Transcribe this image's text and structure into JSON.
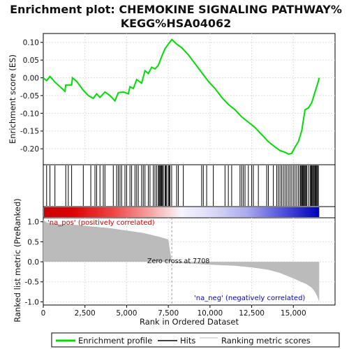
{
  "chart_data": {
    "type": "line",
    "title_line1": "Enrichment plot: CHEMOKINE SIGNALING PATHWAY%",
    "title_line2": "KEGG%HSA04062",
    "x_axis": {
      "label": "Rank in Ordered Dataset",
      "range": [
        0,
        17500
      ],
      "ticks": [
        0,
        2500,
        5000,
        7500,
        10000,
        12500,
        15000
      ],
      "tick_labels": [
        "0",
        "2,500",
        "5,000",
        "7,500",
        "10,000",
        "12,500",
        "15,000"
      ]
    },
    "es_panel": {
      "ylabel": "Enrichment score (ES)",
      "ylim": [
        -0.245,
        0.125
      ],
      "yticks": [
        0.1,
        0.05,
        0.0,
        -0.05,
        -0.1,
        -0.15,
        -0.2
      ],
      "ytick_labels": [
        "0.10",
        "0.05",
        "0.00",
        "-0.05",
        "-0.10",
        "-0.15",
        "-0.20"
      ],
      "grid": true,
      "series_name": "Enrichment profile",
      "color": "#00dd00",
      "points": [
        [
          0,
          0.0
        ],
        [
          200,
          -0.008
        ],
        [
          400,
          0.004
        ],
        [
          700,
          -0.012
        ],
        [
          1000,
          -0.025
        ],
        [
          1300,
          -0.038
        ],
        [
          1350,
          -0.02
        ],
        [
          1700,
          -0.02
        ],
        [
          1750,
          0.0
        ],
        [
          2000,
          -0.01
        ],
        [
          2400,
          -0.035
        ],
        [
          2700,
          -0.05
        ],
        [
          3000,
          -0.058
        ],
        [
          3200,
          -0.045
        ],
        [
          3400,
          -0.055
        ],
        [
          3700,
          -0.04
        ],
        [
          4000,
          -0.05
        ],
        [
          4300,
          -0.065
        ],
        [
          4500,
          -0.042
        ],
        [
          4800,
          -0.04
        ],
        [
          5100,
          -0.045
        ],
        [
          5200,
          -0.025
        ],
        [
          5400,
          -0.03
        ],
        [
          5600,
          -0.005
        ],
        [
          5900,
          -0.015
        ],
        [
          6100,
          0.02
        ],
        [
          6300,
          0.012
        ],
        [
          6500,
          0.03
        ],
        [
          6700,
          0.025
        ],
        [
          6900,
          0.035
        ],
        [
          7100,
          0.06
        ],
        [
          7300,
          0.082
        ],
        [
          7500,
          0.095
        ],
        [
          7650,
          0.104
        ],
        [
          7710,
          0.108
        ],
        [
          8000,
          0.095
        ],
        [
          8300,
          0.085
        ],
        [
          8700,
          0.065
        ],
        [
          9100,
          0.04
        ],
        [
          9500,
          0.015
        ],
        [
          9900,
          -0.01
        ],
        [
          10300,
          -0.03
        ],
        [
          10700,
          -0.055
        ],
        [
          11100,
          -0.075
        ],
        [
          11500,
          -0.09
        ],
        [
          11900,
          -0.11
        ],
        [
          12300,
          -0.125
        ],
        [
          12700,
          -0.14
        ],
        [
          13100,
          -0.16
        ],
        [
          13500,
          -0.18
        ],
        [
          13900,
          -0.195
        ],
        [
          14200,
          -0.205
        ],
        [
          14500,
          -0.21
        ],
        [
          14700,
          -0.215
        ],
        [
          14900,
          -0.213
        ],
        [
          15100,
          -0.195
        ],
        [
          15300,
          -0.18
        ],
        [
          15500,
          -0.15
        ],
        [
          15600,
          -0.12
        ],
        [
          15700,
          -0.09
        ],
        [
          15900,
          -0.085
        ],
        [
          16100,
          -0.07
        ],
        [
          16300,
          -0.04
        ],
        [
          16400,
          -0.025
        ],
        [
          16500,
          -0.01
        ],
        [
          16550,
          0.0
        ]
      ]
    },
    "hits": {
      "series_name": "Hits",
      "positions": [
        200,
        400,
        700,
        1350,
        1500,
        1700,
        2400,
        2850,
        3100,
        3200,
        3400,
        3600,
        3700,
        4200,
        4400,
        4500,
        4600,
        4700,
        4900,
        5000,
        5200,
        5300,
        5500,
        5600,
        5700,
        5900,
        6000,
        6100,
        6300,
        6400,
        6600,
        6700,
        6800,
        6900,
        6950,
        7000,
        7050,
        7100,
        7150,
        7200,
        7300,
        7350,
        7400,
        7500,
        7550,
        7600,
        7700,
        8000,
        8100,
        8400,
        9500,
        9600,
        9800,
        10200,
        10900,
        11100,
        11300,
        11800,
        11900,
        12000,
        12100,
        12300,
        12500,
        12600,
        12900,
        13400,
        13500,
        13800,
        14000,
        14100,
        14200,
        14300,
        14400,
        14500,
        14600,
        14700,
        14800,
        14900,
        15000,
        15100,
        15200,
        15300,
        15400,
        15450,
        15500,
        15550,
        15600,
        15650,
        15700,
        15750,
        15800,
        15900,
        16000,
        16050,
        16100,
        16150,
        16200,
        16250,
        16300,
        16350,
        16400,
        16450,
        16500
      ]
    },
    "rank_metric": {
      "series_name": "Ranking metric scores",
      "ylabel": "Ranked list metric (PreRanked)",
      "ylim": [
        -1.08,
        1.1
      ],
      "yticks": [
        1.0,
        0.5,
        0.0,
        -0.5,
        -1.0
      ],
      "ytick_labels": [
        "1.0",
        "0.5",
        "0.0",
        "-0.5",
        "-1.0"
      ],
      "grid": true,
      "color": "#bbbbbb",
      "points": [
        [
          0,
          1.05
        ],
        [
          200,
          0.98
        ],
        [
          500,
          0.96
        ],
        [
          1000,
          0.94
        ],
        [
          2000,
          0.92
        ],
        [
          3000,
          0.88
        ],
        [
          4000,
          0.84
        ],
        [
          5000,
          0.78
        ],
        [
          6000,
          0.72
        ],
        [
          7000,
          0.62
        ],
        [
          7500,
          0.56
        ],
        [
          7708,
          0.0
        ],
        [
          7710,
          -0.02
        ],
        [
          8500,
          -0.04
        ],
        [
          9500,
          -0.06
        ],
        [
          10500,
          -0.08
        ],
        [
          11500,
          -0.1
        ],
        [
          12500,
          -0.14
        ],
        [
          13500,
          -0.2
        ],
        [
          14200,
          -0.28
        ],
        [
          14800,
          -0.38
        ],
        [
          15300,
          -0.47
        ],
        [
          15800,
          -0.56
        ],
        [
          16100,
          -0.65
        ],
        [
          16300,
          -0.75
        ],
        [
          16450,
          -0.88
        ],
        [
          16550,
          -1.0
        ]
      ]
    },
    "zero_cross": {
      "rank": 7708,
      "label": "Zero cross at 7708"
    },
    "annotations": {
      "pos_label": "'na_pos' (positively correlated)",
      "neg_label": "'na_neg' (negatively correlated)"
    },
    "legend": {
      "placement": "bottom",
      "items": [
        {
          "label": "Enrichment profile",
          "color": "#00dd00",
          "kind": "line"
        },
        {
          "label": "Hits",
          "color": "#000000",
          "kind": "line"
        },
        {
          "label": "Ranking metric scores",
          "color": "#bbbbbb",
          "kind": "line"
        }
      ]
    },
    "heatmap_colors": {
      "pos": "#dd0000",
      "neutral": "#f2f2ff",
      "neg": "#0000cc"
    }
  }
}
